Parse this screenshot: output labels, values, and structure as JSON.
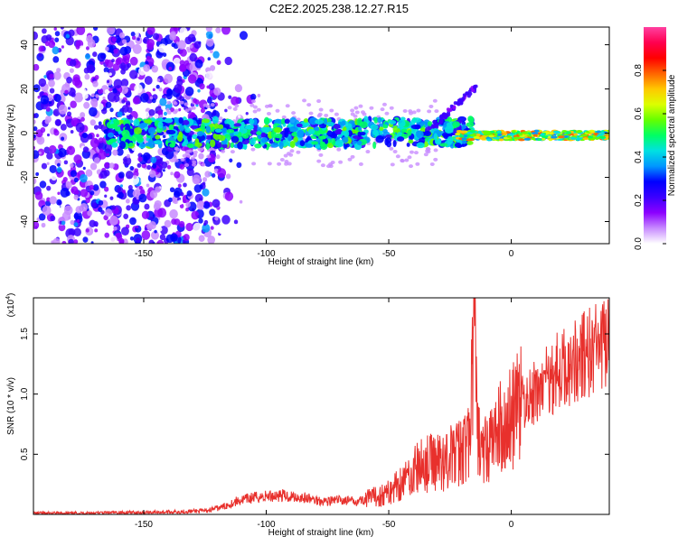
{
  "title": "C2E2.2025.238.12.27.R15",
  "chart_data": [
    {
      "type": "heatmap",
      "xlabel": "Height of straight line (km)",
      "ylabel": "Frequency (Hz)",
      "xlim": [
        -195,
        40
      ],
      "ylim": [
        -50,
        48
      ],
      "xticks": [
        -150,
        -100,
        -50,
        0
      ],
      "yticks": [
        -40,
        -20,
        0,
        20,
        40
      ],
      "colorbar": {
        "label": "Normalized spectral amplitude",
        "range": [
          0,
          1
        ],
        "ticks": [
          "0.0",
          "0.2",
          "0.4",
          "0.6",
          "0.8"
        ],
        "colors": [
          "#ffffff",
          "#c88cff",
          "#8c00ff",
          "#3c00ff",
          "#0000ff",
          "#0096ff",
          "#00e1e1",
          "#00ff64",
          "#64ff00",
          "#dcff00",
          "#ffc800",
          "#ff6400",
          "#ff0000",
          "#ff0050",
          "#ff40a0"
        ]
      },
      "features": [
        {
          "x_range": [
            -195,
            -125
          ],
          "freq_range": [
            -50,
            48
          ],
          "level": 0.15
        },
        {
          "x_range": [
            -165,
            -20
          ],
          "freq_center": 0,
          "freq_halfwidth": 6,
          "level": 0.4
        },
        {
          "x_range": [
            -30,
            -15
          ],
          "freq_range": [
            5,
            22
          ],
          "level": 0.2
        },
        {
          "x_range": [
            -15,
            40
          ],
          "freq_center": -1,
          "freq_halfwidth": 2,
          "level": 0.7
        }
      ]
    },
    {
      "type": "line",
      "xlabel": "Height of straight line (km)",
      "ylabel": "SNR (10 * v/v)",
      "y_multiplier": "(x10",
      "y_exponent": "4",
      "y_suffix": ")",
      "xlim": [
        -195,
        40
      ],
      "ylim": [
        0,
        1.8
      ],
      "xticks": [
        -150,
        -100,
        -50,
        0
      ],
      "yticks": [
        0.5,
        1.0,
        1.5
      ],
      "ytick_labels": [
        "0.5",
        "1.0",
        "1.5"
      ],
      "color": "#e8302c",
      "series": [
        {
          "x": [
            -195,
            -180,
            -160,
            -140,
            -125,
            -118,
            -112,
            -105,
            -100,
            -95,
            -90,
            -85,
            -80,
            -75,
            -70,
            -65,
            -60,
            -55,
            -50,
            -47,
            -43,
            -40,
            -37,
            -34,
            -31,
            -28,
            -25,
            -22,
            -20,
            -17,
            -15,
            -14,
            -12,
            -10,
            -8,
            -6,
            -4,
            -2,
            0,
            3,
            6,
            9,
            12,
            15,
            18,
            21,
            24,
            27,
            30,
            33,
            36,
            40
          ],
          "y": [
            0.01,
            0.01,
            0.015,
            0.02,
            0.03,
            0.06,
            0.11,
            0.14,
            0.15,
            0.16,
            0.15,
            0.14,
            0.12,
            0.11,
            0.12,
            0.11,
            0.12,
            0.15,
            0.18,
            0.24,
            0.3,
            0.36,
            0.4,
            0.42,
            0.45,
            0.44,
            0.48,
            0.5,
            0.55,
            0.6,
            1.6,
            0.7,
            0.5,
            0.55,
            0.6,
            0.68,
            0.72,
            0.75,
            0.8,
            0.88,
            0.95,
            0.98,
            1.05,
            1.12,
            1.18,
            1.2,
            1.25,
            1.28,
            1.32,
            1.35,
            1.38,
            1.4
          ]
        }
      ]
    }
  ]
}
